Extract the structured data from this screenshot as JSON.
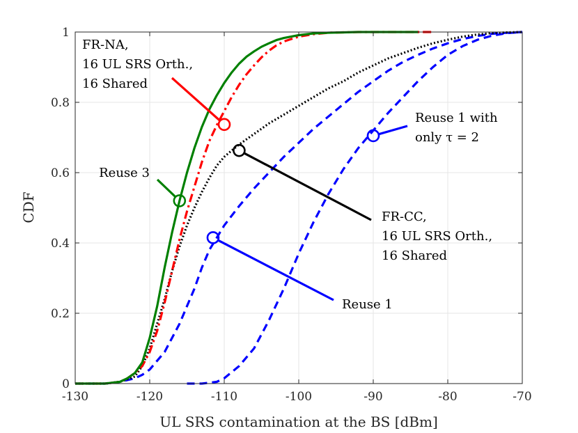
{
  "chart_data": {
    "type": "line",
    "title": "",
    "xlabel": "UL SRS contamination at the BS [dBm]",
    "ylabel": "CDF",
    "xlim": [
      -130,
      -70
    ],
    "ylim": [
      0,
      1
    ],
    "xticks": [
      -130,
      -120,
      -110,
      -100,
      -90,
      -80,
      -70
    ],
    "yticks": [
      0,
      0.2,
      0.4,
      0.6,
      0.8,
      1
    ],
    "xtick_labels": [
      "-130",
      "-120",
      "-110",
      "-100",
      "-90",
      "-80",
      "-70"
    ],
    "ytick_labels": [
      "0",
      "0.2",
      "0.4",
      "0.6",
      "0.8",
      "1"
    ],
    "grid": true,
    "series": [
      {
        "name": "Reuse 3",
        "color": "#008000",
        "style": "solid",
        "x": [
          -130,
          -126,
          -124,
          -123,
          -122,
          -121,
          -120,
          -119,
          -118,
          -117,
          -116,
          -115,
          -114,
          -113,
          -112,
          -111,
          -110,
          -109,
          -108,
          -107,
          -106,
          -105,
          -104,
          -103,
          -102,
          -100,
          -98,
          -96,
          -94,
          -92,
          -90,
          -88,
          -86,
          -84
        ],
        "y": [
          0,
          0,
          0.005,
          0.015,
          0.03,
          0.06,
          0.13,
          0.22,
          0.33,
          0.43,
          0.52,
          0.6,
          0.67,
          0.73,
          0.78,
          0.82,
          0.855,
          0.885,
          0.91,
          0.93,
          0.945,
          0.958,
          0.968,
          0.977,
          0.983,
          0.991,
          0.996,
          0.998,
          0.999,
          1,
          1,
          1,
          1,
          1
        ]
      },
      {
        "name": "FR-NA, 16 UL SRS Orth., 16 Shared",
        "color": "#ff0000",
        "style": "dashdot",
        "x": [
          -130,
          -126,
          -124,
          -123,
          -122,
          -121,
          -120,
          -119,
          -118,
          -117,
          -116,
          -115,
          -114,
          -113,
          -112,
          -111,
          -110,
          -109,
          -108,
          -107,
          -106,
          -105,
          -104,
          -103,
          -102,
          -100,
          -98,
          -96,
          -94,
          -92,
          -90,
          -88,
          -86,
          -84,
          -82
        ],
        "y": [
          0,
          0,
          0.005,
          0.015,
          0.03,
          0.05,
          0.09,
          0.15,
          0.23,
          0.32,
          0.41,
          0.49,
          0.56,
          0.63,
          0.69,
          0.735,
          0.775,
          0.815,
          0.85,
          0.88,
          0.905,
          0.928,
          0.947,
          0.962,
          0.973,
          0.987,
          0.994,
          0.998,
          0.999,
          1,
          1,
          1,
          1,
          1,
          1
        ]
      },
      {
        "name": "FR-CC, 16 UL SRS Orth., 16 Shared",
        "color": "#000000",
        "style": "dotted",
        "x": [
          -130,
          -126,
          -124,
          -122,
          -121,
          -120,
          -119,
          -118,
          -117,
          -116,
          -115,
          -114,
          -113,
          -112,
          -111,
          -110,
          -109,
          -108,
          -106,
          -104,
          -102,
          -100,
          -98,
          -96,
          -94,
          -92,
          -90,
          -88,
          -86,
          -84,
          -82,
          -80,
          -78,
          -76,
          -74,
          -72,
          -70
        ],
        "y": [
          0,
          0,
          0.005,
          0.02,
          0.05,
          0.1,
          0.17,
          0.24,
          0.32,
          0.39,
          0.45,
          0.5,
          0.545,
          0.585,
          0.62,
          0.645,
          0.663,
          0.68,
          0.71,
          0.74,
          0.765,
          0.79,
          0.815,
          0.84,
          0.86,
          0.885,
          0.905,
          0.925,
          0.94,
          0.955,
          0.968,
          0.978,
          0.987,
          0.993,
          0.997,
          0.999,
          1
        ]
      },
      {
        "name": "Reuse 1",
        "color": "#0000ff",
        "style": "dashed",
        "x": [
          -130,
          -126,
          -124,
          -122,
          -121,
          -120,
          -118,
          -116,
          -114,
          -113,
          -112,
          -111,
          -110,
          -108,
          -106,
          -104,
          -102,
          -100,
          -98,
          -96,
          -94,
          -92,
          -90,
          -88,
          -86,
          -84,
          -82,
          -80,
          -78,
          -76,
          -74,
          -72,
          -70
        ],
        "y": [
          0,
          0,
          0.005,
          0.015,
          0.025,
          0.04,
          0.09,
          0.17,
          0.27,
          0.33,
          0.38,
          0.415,
          0.45,
          0.505,
          0.555,
          0.6,
          0.645,
          0.685,
          0.725,
          0.76,
          0.795,
          0.83,
          0.86,
          0.89,
          0.915,
          0.935,
          0.953,
          0.968,
          0.98,
          0.989,
          0.995,
          0.998,
          1
        ]
      },
      {
        "name": "Reuse 1 with only τ = 2",
        "color": "#0000ff",
        "style": "dashed",
        "x": [
          -115,
          -113,
          -111,
          -110,
          -108,
          -106,
          -104,
          -102,
          -101,
          -100,
          -98,
          -96,
          -94,
          -92,
          -90,
          -88,
          -86,
          -84,
          -82,
          -80,
          -78,
          -76,
          -74,
          -72,
          -70
        ],
        "y": [
          0,
          0,
          0.005,
          0.015,
          0.05,
          0.1,
          0.18,
          0.27,
          0.32,
          0.37,
          0.46,
          0.54,
          0.61,
          0.67,
          0.72,
          0.77,
          0.815,
          0.86,
          0.9,
          0.935,
          0.96,
          0.978,
          0.99,
          0.997,
          1
        ]
      }
    ],
    "annotations": [
      {
        "series": 0,
        "lines": [
          "Reuse 3"
        ],
        "at": [
          -116,
          0.52
        ],
        "text_anchor": [
          -124,
          0.58
        ]
      },
      {
        "series": 1,
        "lines": [
          "FR-NA,",
          "16 UL SRS Orth.,",
          "16 Shared"
        ],
        "at": [
          -110,
          0.737
        ],
        "text_anchor": [
          -121,
          0.86
        ]
      },
      {
        "series": 2,
        "lines": [
          "FR-CC,",
          "16 UL SRS Orth.,",
          "16 Shared"
        ],
        "at": [
          -108,
          0.663
        ],
        "text_anchor": [
          -95,
          0.47
        ]
      },
      {
        "series": 3,
        "lines": [
          "Reuse 1"
        ],
        "at": [
          -111.5,
          0.415
        ],
        "text_anchor": [
          -95.5,
          0.235
        ]
      },
      {
        "series": 4,
        "lines": [
          "Reuse 1 with",
          "only τ = 2"
        ],
        "at": [
          -90,
          0.705
        ],
        "text_anchor": [
          -85.5,
          0.725
        ]
      }
    ]
  }
}
